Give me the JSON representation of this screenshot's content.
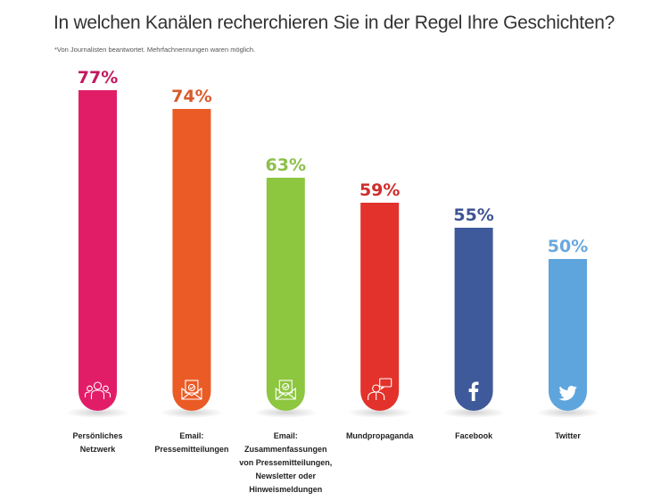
{
  "title": "In welchen Kanälen recherchieren Sie in der Regel Ihre Geschichten?",
  "subtitle": "*Von Journalisten beantwortet. Mehrfachnennungen waren möglich.",
  "chart_data": {
    "type": "bar",
    "title": "In welchen Kanälen recherchieren Sie in der Regel Ihre Geschichten?",
    "subtitle": "*Von Journalisten beantwortet. Mehrfachnennungen waren möglich.",
    "xlabel": "",
    "ylabel": "",
    "ylim": [
      0,
      100
    ],
    "grid": false,
    "unit": "%",
    "categories": [
      "Persönliches Netzwerk",
      "Email: Pressemitteilungen",
      "Email: Zusammenfassungen von Pressemitteilungen, Newsletter oder Hinweismeldungen",
      "Mundpropaganda",
      "Facebook",
      "Twitter"
    ],
    "category_lines": [
      [
        "Persönliches",
        "Netzwerk"
      ],
      [
        "Email:",
        "Pressemitteilungen"
      ],
      [
        "Email:",
        "Zusammenfassungen",
        "von Pressemitteilungen,",
        "Newsletter oder",
        "Hinweismeldungen"
      ],
      [
        "Mundpropaganda"
      ],
      [
        "Facebook"
      ],
      [
        "Twitter"
      ]
    ],
    "values": [
      77,
      74,
      63,
      59,
      55,
      50
    ],
    "value_labels": [
      "77%",
      "74%",
      "63%",
      "59%",
      "55%",
      "50%"
    ],
    "colors": [
      "#e21d68",
      "#ea5b25",
      "#8dc63f",
      "#e2322b",
      "#3f5a9b",
      "#5ea5de"
    ],
    "label_colors": [
      "#c21a5e",
      "#d95a2a",
      "#8cc04a",
      "#cf2e2b",
      "#3f5493",
      "#6aa8dc"
    ],
    "icons": [
      "people-network-icon",
      "email-press-release-icon",
      "email-newsletter-icon",
      "speech-bubble-person-icon",
      "facebook-icon",
      "twitter-icon"
    ]
  }
}
